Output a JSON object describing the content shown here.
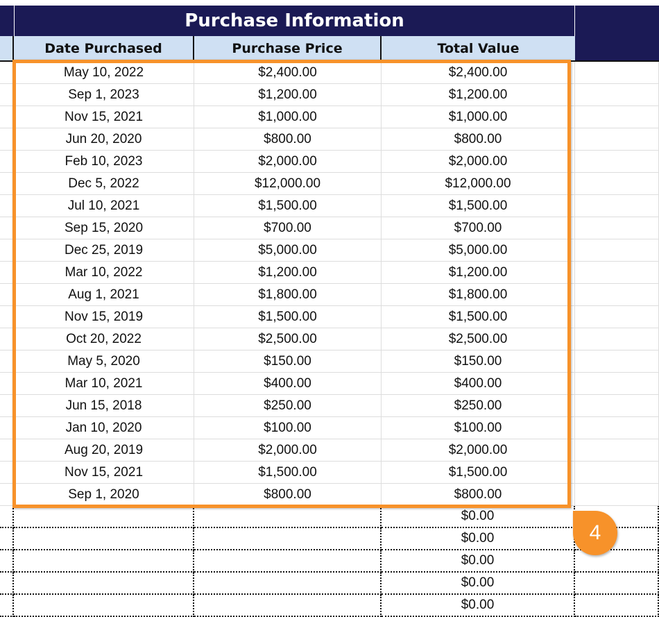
{
  "header": {
    "title": "Purchase Information",
    "columns": [
      "Date Purchased",
      "Purchase Price",
      "Total Value"
    ]
  },
  "rows": [
    [
      "May 10, 2022",
      "$2,400.00",
      "$2,400.00"
    ],
    [
      "Sep 1, 2023",
      "$1,200.00",
      "$1,200.00"
    ],
    [
      "Nov 15, 2021",
      "$1,000.00",
      "$1,000.00"
    ],
    [
      "Jun 20, 2020",
      "$800.00",
      "$800.00"
    ],
    [
      "Feb 10, 2023",
      "$2,000.00",
      "$2,000.00"
    ],
    [
      "Dec 5, 2022",
      "$12,000.00",
      "$12,000.00"
    ],
    [
      "Jul 10, 2021",
      "$1,500.00",
      "$1,500.00"
    ],
    [
      "Sep 15, 2020",
      "$700.00",
      "$700.00"
    ],
    [
      "Dec 25, 2019",
      "$5,000.00",
      "$5,000.00"
    ],
    [
      "Mar 10, 2022",
      "$1,200.00",
      "$1,200.00"
    ],
    [
      "Aug 1, 2021",
      "$1,800.00",
      "$1,800.00"
    ],
    [
      "Nov 15, 2019",
      "$1,500.00",
      "$1,500.00"
    ],
    [
      "Oct 20, 2022",
      "$2,500.00",
      "$2,500.00"
    ],
    [
      "May 5, 2020",
      "$150.00",
      "$150.00"
    ],
    [
      "Mar 10, 2021",
      "$400.00",
      "$400.00"
    ],
    [
      "Jun 15, 2018",
      "$250.00",
      "$250.00"
    ],
    [
      "Jan 10, 2020",
      "$100.00",
      "$100.00"
    ],
    [
      "Aug 20, 2019",
      "$2,000.00",
      "$2,000.00"
    ],
    [
      "Nov 15, 2021",
      "$1,500.00",
      "$1,500.00"
    ],
    [
      "Sep 1, 2020",
      "$800.00",
      "$800.00"
    ]
  ],
  "blank_rows": [
    [
      "",
      "",
      "$0.00"
    ],
    [
      "",
      "",
      "$0.00"
    ],
    [
      "",
      "",
      "$0.00"
    ],
    [
      "",
      "",
      "$0.00"
    ],
    [
      "",
      "",
      "$0.00"
    ]
  ],
  "callout": {
    "label": "4",
    "color": "#f7922a"
  },
  "colors": {
    "header_navy": "#1b1a55",
    "subheader": "#cfe0f3",
    "selection": "#f7922a"
  }
}
